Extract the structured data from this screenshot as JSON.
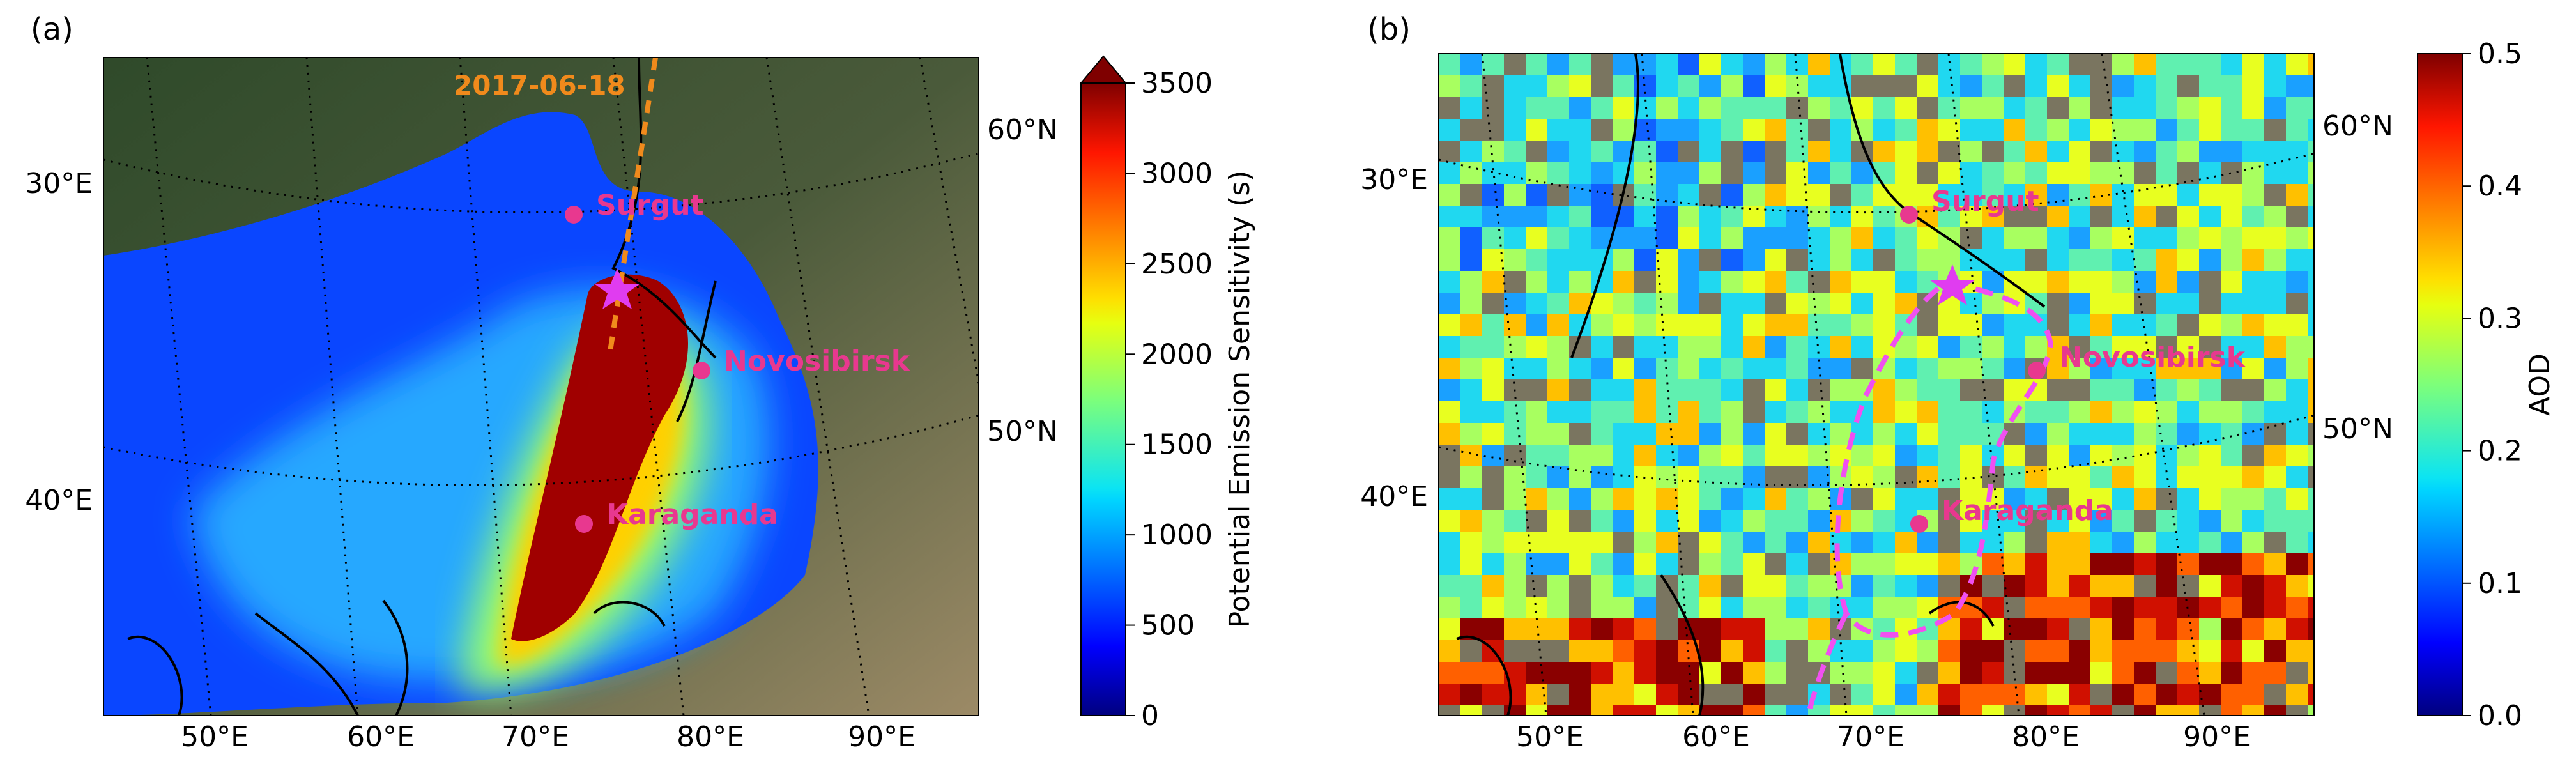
{
  "chart_data": [
    {
      "panel": "(a)",
      "type": "heatmap",
      "map": {
        "lon_labels": [
          "50°E",
          "60°E",
          "70°E",
          "80°E",
          "90°E"
        ],
        "left_lat_labels": [
          "30°E",
          "40°E"
        ],
        "right_lat_labels": [
          "60°N",
          "50°N"
        ]
      },
      "date_label": "2017-06-18",
      "cities": [
        "Surgut",
        "Novosibirsk",
        "Karaganda"
      ],
      "colorbar": {
        "label": "Potential Emission Sensitivity (s)",
        "range": [
          0,
          3500
        ],
        "ticks": [
          "0",
          "500",
          "1000",
          "1500",
          "2000",
          "2500",
          "3000",
          "3500"
        ],
        "extend": "max",
        "colormap": "jet"
      }
    },
    {
      "panel": "(b)",
      "type": "heatmap",
      "map": {
        "lon_labels": [
          "50°E",
          "60°E",
          "70°E",
          "80°E",
          "90°E"
        ],
        "left_lat_labels": [
          "30°E",
          "40°E"
        ],
        "right_lat_labels": [
          "60°N",
          "50°N"
        ]
      },
      "cities": [
        "Surgut",
        "Novosibirsk",
        "Karaganda"
      ],
      "colorbar": {
        "label": "AOD",
        "range": [
          0.0,
          0.5
        ],
        "ticks": [
          "0.0",
          "0.1",
          "0.2",
          "0.3",
          "0.4",
          "0.5"
        ],
        "colormap": "jet"
      }
    }
  ],
  "colors": {
    "city_marker": "#e8388f",
    "source_star": "#e03cf0",
    "trajectory": "#f08a1c",
    "contour": "#f050f0"
  }
}
